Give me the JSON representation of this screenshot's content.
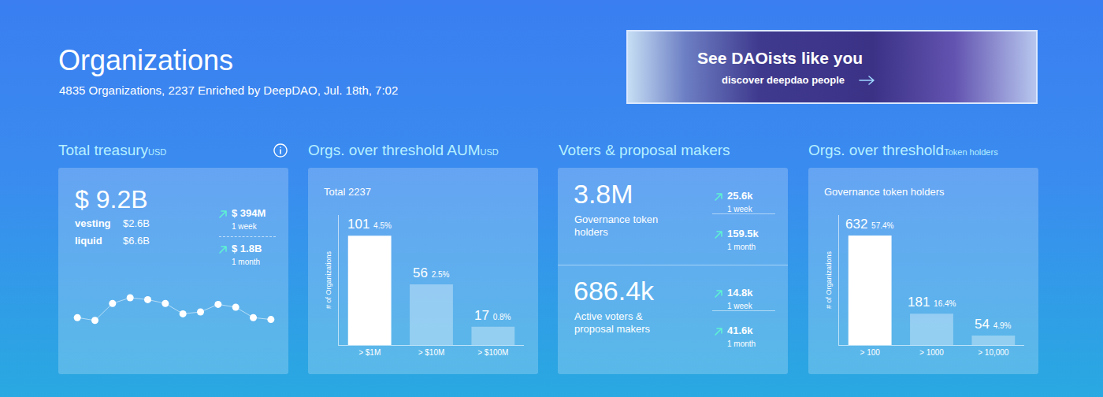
{
  "header": {
    "title": "Organizations",
    "subtitle": "4835 Organizations, 2237 Enriched by DeepDAO, Jul. 18th, 7:02"
  },
  "banner": {
    "title": "See DAOists like you",
    "link": "discover deepdao people"
  },
  "panels": {
    "treasury": {
      "title": "Total treasury",
      "unit": "USD",
      "total": "$ 9.2B",
      "rows": [
        {
          "label": "vesting",
          "value": "$2.6B"
        },
        {
          "label": "liquid",
          "value": "$6.6B"
        }
      ],
      "changes": [
        {
          "value": "$ 394M",
          "period": "1 week"
        },
        {
          "value": "$ 1.8B",
          "period": "1 month"
        }
      ]
    },
    "aum": {
      "title": "Orgs. over threshold AUM",
      "unit": "USD"
    },
    "voters": {
      "title": "Voters & proposal makers",
      "stats": [
        {
          "value": "3.8M",
          "label": "Governance token holders",
          "changes": [
            {
              "value": "25.6k",
              "period": "1 week"
            },
            {
              "value": "159.5k",
              "period": "1 month"
            }
          ]
        },
        {
          "value": "686.4k",
          "label": "Active voters & proposal makers",
          "changes": [
            {
              "value": "14.8k",
              "period": "1 week"
            },
            {
              "value": "41.6k",
              "period": "1 month"
            }
          ]
        }
      ]
    },
    "holders": {
      "title": "Orgs. over threshold",
      "unit": "Token holders"
    }
  },
  "chart_data": [
    {
      "type": "line",
      "categories": [
        null,
        null,
        null,
        null,
        null,
        null,
        null,
        null,
        null,
        null,
        null,
        null
      ],
      "values": [
        14,
        11,
        29,
        35,
        33,
        29,
        18,
        20,
        28,
        25,
        14,
        12
      ],
      "ylim": [
        0,
        50
      ],
      "yticks": [],
      "tick_labels": false,
      "grid": false,
      "marker": "circle",
      "color": "#ffffff"
    },
    {
      "type": "bar",
      "title": "Total 2237",
      "ylabel": "# of Organizations",
      "categories": [
        "> $1M",
        "> $10M",
        "> $100M"
      ],
      "values": [
        101,
        56,
        17
      ],
      "percent_labels": [
        "4.5%",
        "2.5%",
        "0.8%"
      ],
      "colors": [
        "#ffffff",
        "rgba(255,255,255,0.35)",
        "rgba(255,255,255,0.35)"
      ],
      "ylim": [
        0,
        120
      ],
      "yticks": [],
      "tick_labels": "x",
      "grid": false,
      "data_labels": true
    },
    {
      "type": "bar",
      "title": "Governance token holders",
      "ylabel": "# of Organizations",
      "categories": [
        "> 100",
        "> 1000",
        "> 10,000"
      ],
      "values": [
        632,
        181,
        54
      ],
      "percent_labels": [
        "57.4%",
        "16.4%",
        "4.9%"
      ],
      "colors": [
        "#ffffff",
        "rgba(255,255,255,0.35)",
        "rgba(255,255,255,0.35)"
      ],
      "ylim": [
        0,
        750
      ],
      "yticks": [],
      "tick_labels": "x",
      "grid": false,
      "data_labels": true
    }
  ]
}
